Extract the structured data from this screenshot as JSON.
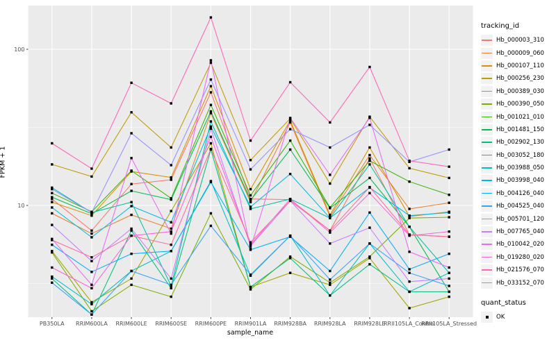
{
  "chart_data": {
    "type": "line",
    "title": "",
    "xlabel": "sample_name",
    "ylabel": "FPKM + 1",
    "y_scale": "log10",
    "ylim": [
      1.7,
      190
    ],
    "y_ticks": [
      100,
      10
    ],
    "y_minor_ticks": [
      31.62,
      3.162
    ],
    "grid": true,
    "panel_bg": "#EBEBEB",
    "grid_color": "#FFFFFF",
    "point_color": "#000000",
    "legend": {
      "title": "tracking_id",
      "position": "right"
    },
    "quant_legend": {
      "title": "quant_status",
      "items": [
        {
          "label": "OK"
        }
      ]
    },
    "categories": [
      "PB350LA",
      "RRIM600LA",
      "RRIM600LE",
      "RRIM600SE",
      "RRIM600PE",
      "RRIM901LA",
      "RRIM928BA",
      "RRIM928LA",
      "RRIM928LE",
      "RRII105LA_Control",
      "RRII105LA_Stressed"
    ],
    "series": [
      {
        "name": "Hb_000003_310",
        "color": "#F8766D",
        "values": [
          11.0,
          6.9,
          13.7,
          14.6,
          53,
          11.0,
          10.9,
          6.9,
          20.0,
          6.5,
          6.3
        ]
      },
      {
        "name": "Hb_000009_060",
        "color": "#EA8331",
        "values": [
          8.9,
          6.6,
          8.7,
          7.1,
          39,
          10.5,
          34.0,
          8.5,
          21.0,
          9.5,
          10.4
        ]
      },
      {
        "name": "Hb_000107_110",
        "color": "#D89000",
        "values": [
          10.5,
          8.6,
          16.5,
          15.1,
          58,
          12.7,
          35.0,
          8.7,
          23.5,
          8.5,
          9.1
        ]
      },
      {
        "name": "Hb_000256_230",
        "color": "#C09B00",
        "values": [
          18.3,
          15.3,
          39.5,
          23.5,
          82,
          19.5,
          36.0,
          13.8,
          37.0,
          17.3,
          15.0
        ]
      },
      {
        "name": "Hb_000389_030",
        "color": "#A3A500",
        "values": [
          5.1,
          2.4,
          3.4,
          9.2,
          25,
          3.0,
          3.7,
          3.1,
          4.6,
          2.2,
          2.6
        ]
      },
      {
        "name": "Hb_000390_050",
        "color": "#7CAE00",
        "values": [
          5.0,
          2.1,
          3.1,
          2.6,
          8.9,
          2.9,
          4.7,
          3.2,
          4.7,
          8.3,
          8.4
        ]
      },
      {
        "name": "Hb_001021_010",
        "color": "#39B600",
        "values": [
          12.0,
          9.1,
          16.7,
          11.1,
          44,
          11.6,
          26.0,
          9.7,
          19.3,
          14.2,
          11.7
        ]
      },
      {
        "name": "Hb_001481_150",
        "color": "#00BB4E",
        "values": [
          11.3,
          8.85,
          12.4,
          10.9,
          40,
          10.8,
          22.8,
          9.6,
          15.0,
          7.3,
          2.8
        ]
      },
      {
        "name": "Hb_002902_130",
        "color": "#00BF7D",
        "values": [
          3.4,
          2.0,
          6.9,
          2.95,
          22.8,
          3.0,
          4.6,
          2.65,
          4.2,
          2.8,
          2.8
        ]
      },
      {
        "name": "Hb_003052_180",
        "color": "#00C1A3",
        "values": [
          13.0,
          9.0,
          10.5,
          3.05,
          34.5,
          9.5,
          11.0,
          8.3,
          18.3,
          7.3,
          3.7
        ]
      },
      {
        "name": "Hb_003988_050",
        "color": "#00BFC4",
        "values": [
          3.5,
          2.33,
          3.8,
          5.1,
          14.3,
          3.55,
          6.4,
          2.65,
          5.7,
          2.8,
          3.7
        ]
      },
      {
        "name": "Hb_003998_040",
        "color": "#00BAE0",
        "values": [
          9.7,
          6.25,
          9.9,
          7.8,
          32,
          9.8,
          15.9,
          8.3,
          13.0,
          8.6,
          9.0
        ]
      },
      {
        "name": "Hb_004126_040",
        "color": "#00B0F6",
        "values": [
          5.6,
          3.75,
          4.9,
          5.1,
          14.1,
          5.2,
          6.3,
          3.8,
          9.0,
          3.9,
          4.9
        ]
      },
      {
        "name": "Hb_004525_040",
        "color": "#35A2FF",
        "values": [
          3.2,
          2.0,
          3.8,
          3.1,
          7.4,
          3.6,
          6.4,
          3.35,
          5.7,
          3.7,
          3.05
        ]
      },
      {
        "name": "Hb_005701_120",
        "color": "#9590FF",
        "values": [
          12.7,
          9.0,
          29.0,
          18.1,
          64,
          17.0,
          30.8,
          23.5,
          32.8,
          19.0,
          22.8
        ]
      },
      {
        "name": "Hb_007765_040",
        "color": "#C77CFF",
        "values": [
          7.5,
          4.4,
          7.1,
          3.4,
          31,
          5.5,
          10.7,
          5.7,
          7.2,
          3.25,
          3.4
        ]
      },
      {
        "name": "Hb_010042_020",
        "color": "#E76BF3",
        "values": [
          6.1,
          3.1,
          20.1,
          6.6,
          85,
          5.3,
          36.3,
          15.7,
          36.4,
          5.05,
          4.0
        ]
      },
      {
        "name": "Hb_019280_020",
        "color": "#FA62DB",
        "values": [
          4.0,
          2.95,
          6.4,
          6.8,
          27.5,
          5.6,
          11.0,
          6.7,
          12.0,
          6.4,
          6.8
        ]
      },
      {
        "name": "Hb_021576_070",
        "color": "#FF62BC",
        "values": [
          25,
          17.2,
          61,
          45,
          160,
          26,
          61.5,
          34,
          77,
          19.3,
          17.7
        ]
      },
      {
        "name": "Hb_033152_070",
        "color": "#FF6A98",
        "values": [
          6.0,
          4.65,
          6.4,
          5.6,
          23,
          5.8,
          10.7,
          6.9,
          13.1,
          6.5,
          6.3
        ]
      }
    ]
  }
}
